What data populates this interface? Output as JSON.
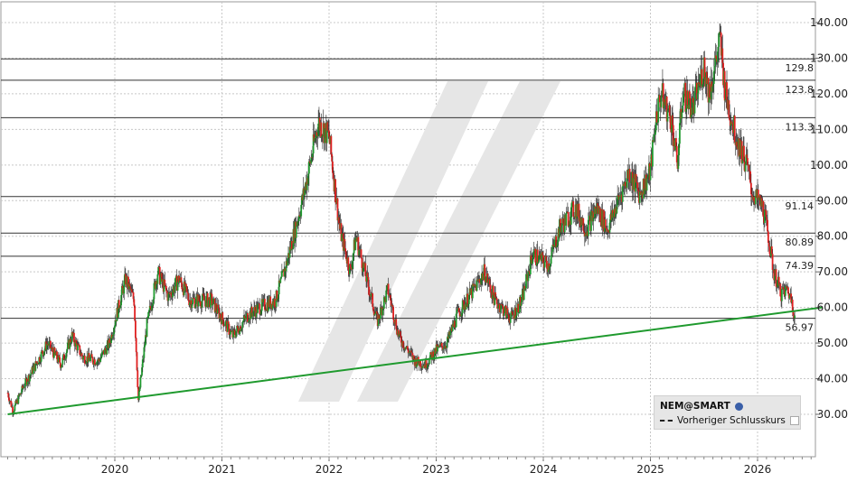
{
  "legend": {
    "symbol": "NEM@SMART",
    "prev_close_label": "Vorheriger Schlusskurs"
  },
  "chart_data": {
    "type": "candlestick",
    "ylim": [
      20,
      142
    ],
    "y_ticks": [
      30,
      40,
      50,
      60,
      70,
      80,
      90,
      100,
      110,
      120,
      130,
      140
    ],
    "y_tick_labels": [
      "30.00",
      "40.00",
      "50.00",
      "60.00",
      "70.00",
      "80.00",
      "90.00",
      "100.00",
      "110.00",
      "120.00",
      "130.00",
      "140.00"
    ],
    "x_range": [
      2019.0,
      2026.55
    ],
    "x_ticks": [
      2020,
      2021,
      2022,
      2023,
      2024,
      2025,
      2026
    ],
    "x_tick_labels": [
      "2020",
      "2021",
      "2022",
      "2023",
      "2024",
      "2025",
      "2026"
    ],
    "levels": [
      {
        "value": 129.8,
        "label": "129.8"
      },
      {
        "value": 123.8,
        "label": "123.8"
      },
      {
        "value": 113.3,
        "label": "113.3"
      },
      {
        "value": 91.14,
        "label": "91.14"
      },
      {
        "value": 80.89,
        "label": "80.89"
      },
      {
        "value": 74.39,
        "label": "74.39"
      },
      {
        "value": 56.97,
        "label": "56.97"
      }
    ],
    "trendline": {
      "from": [
        2019.0,
        30
      ],
      "to": [
        2026.35,
        59
      ],
      "color": "#1f9a2e"
    },
    "up_color": "#1f9a2e",
    "down_color": "#e02020",
    "grid": true,
    "legend_position": "bottom-right",
    "price_path": [
      [
        2019.0,
        36
      ],
      [
        2019.05,
        31
      ],
      [
        2019.15,
        38
      ],
      [
        2019.3,
        46
      ],
      [
        2019.37,
        50
      ],
      [
        2019.5,
        44
      ],
      [
        2019.6,
        52
      ],
      [
        2019.7,
        46
      ],
      [
        2019.85,
        45
      ],
      [
        2019.95,
        50
      ],
      [
        2020.05,
        62
      ],
      [
        2020.1,
        68
      ],
      [
        2020.18,
        62
      ],
      [
        2020.22,
        34
      ],
      [
        2020.3,
        55
      ],
      [
        2020.4,
        70
      ],
      [
        2020.5,
        63
      ],
      [
        2020.6,
        68
      ],
      [
        2020.7,
        62
      ],
      [
        2020.9,
        62
      ],
      [
        2021.1,
        52
      ],
      [
        2021.25,
        58
      ],
      [
        2021.35,
        60
      ],
      [
        2021.5,
        62
      ],
      [
        2021.6,
        72
      ],
      [
        2021.75,
        90
      ],
      [
        2021.82,
        100
      ],
      [
        2021.9,
        112
      ],
      [
        2022.0,
        108
      ],
      [
        2022.1,
        82
      ],
      [
        2022.2,
        70
      ],
      [
        2022.25,
        80
      ],
      [
        2022.35,
        68
      ],
      [
        2022.45,
        56
      ],
      [
        2022.55,
        65
      ],
      [
        2022.65,
        52
      ],
      [
        2022.8,
        45
      ],
      [
        2022.9,
        44
      ],
      [
        2023.0,
        48
      ],
      [
        2023.1,
        50
      ],
      [
        2023.2,
        58
      ],
      [
        2023.35,
        65
      ],
      [
        2023.45,
        70
      ],
      [
        2023.55,
        62
      ],
      [
        2023.7,
        57
      ],
      [
        2023.8,
        62
      ],
      [
        2023.9,
        75
      ],
      [
        2024.05,
        72
      ],
      [
        2024.15,
        82
      ],
      [
        2024.3,
        88
      ],
      [
        2024.4,
        82
      ],
      [
        2024.5,
        88
      ],
      [
        2024.6,
        82
      ],
      [
        2024.7,
        90
      ],
      [
        2024.8,
        98
      ],
      [
        2024.9,
        92
      ],
      [
        2025.0,
        98
      ],
      [
        2025.05,
        113
      ],
      [
        2025.1,
        120
      ],
      [
        2025.2,
        112
      ],
      [
        2025.25,
        100
      ],
      [
        2025.3,
        120
      ],
      [
        2025.4,
        116
      ],
      [
        2025.5,
        128
      ],
      [
        2025.55,
        120
      ],
      [
        2025.65,
        135
      ],
      [
        2025.7,
        120
      ],
      [
        2025.8,
        108
      ],
      [
        2025.9,
        100
      ],
      [
        2025.95,
        92
      ],
      [
        2026.0,
        90
      ],
      [
        2026.05,
        88
      ],
      [
        2026.1,
        80
      ],
      [
        2026.15,
        70
      ],
      [
        2026.22,
        64
      ],
      [
        2026.28,
        65
      ],
      [
        2026.32,
        62
      ],
      [
        2026.35,
        57
      ]
    ]
  }
}
